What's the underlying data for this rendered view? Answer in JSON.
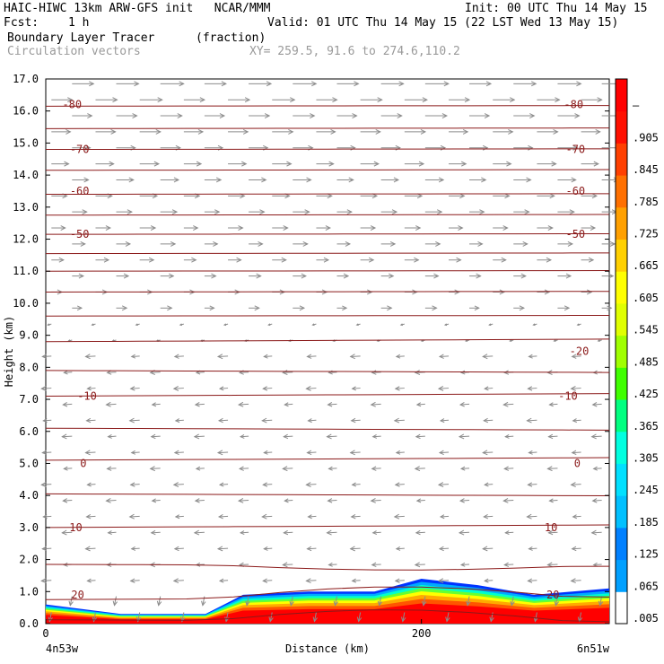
{
  "header": {
    "line1_left": "HAIC-HIWC 13km ARW-GFS init   NCAR/MMM",
    "line1_right": "Init: 00 UTC Thu 14 May 15",
    "fcst_label": "Fcst:",
    "fcst_value": "1 h",
    "valid": "Valid: 01 UTC Thu 14 May 15 (22 LST Wed 13 May 15)",
    "field": "Boundary Layer Tracer",
    "field_units": "(fraction)",
    "vectors": "Circulation vectors",
    "xy": "XY= 259.5, 91.6 to 274.6,110.2"
  },
  "colors": {
    "contour": "#8b1a1a",
    "vector": "#8c8c8c"
  },
  "chart_data": {
    "type": "heatmap",
    "xlabel": "Distance (km)",
    "ylabel": "Height (km)",
    "xlim": [
      0,
      300
    ],
    "ylim": [
      0,
      17
    ],
    "x_ticks": [
      {
        "v": 0,
        "label": "0"
      },
      {
        "v": 200,
        "label": "200"
      }
    ],
    "x_end_labels": [
      "4n53w",
      "6n51w"
    ],
    "y_ticks": [
      "0.0",
      "1.0",
      "2.0",
      "3.0",
      "4.0",
      "5.0",
      "6.0",
      "7.0",
      "8.0",
      "9.0",
      "10.0",
      "11.0",
      "12.0",
      "13.0",
      "14.0",
      "15.0",
      "16.0",
      "17.0"
    ],
    "colorbar": {
      "labels": [
        ".005",
        ".065",
        ".125",
        ".185",
        ".245",
        ".305",
        ".365",
        ".425",
        ".485",
        ".545",
        ".605",
        ".665",
        ".725",
        ".785",
        ".845",
        ".905",
        "–"
      ],
      "colors": [
        "#ffffff",
        "#00a0ff",
        "#0080ff",
        "#00c0ff",
        "#00e0ff",
        "#00ffe0",
        "#00ff80",
        "#40ff00",
        "#a0ff00",
        "#e0ff00",
        "#ffff00",
        "#ffd000",
        "#ffa000",
        "#ff7000",
        "#ff4000",
        "#ff1000",
        "#ff0000"
      ]
    },
    "temperature_contour_labels": [
      "-80",
      "-70",
      "-60",
      "-50",
      "-20",
      "-10",
      "0",
      "10",
      "20"
    ],
    "tracer_top_km": [
      {
        "x": 0,
        "y": 0.6
      },
      {
        "x": 40,
        "y": 0.3
      },
      {
        "x": 85,
        "y": 0.3
      },
      {
        "x": 105,
        "y": 0.9
      },
      {
        "x": 140,
        "y": 1.0
      },
      {
        "x": 175,
        "y": 1.0
      },
      {
        "x": 200,
        "y": 1.4
      },
      {
        "x": 230,
        "y": 1.2
      },
      {
        "x": 260,
        "y": 0.9
      },
      {
        "x": 300,
        "y": 1.1
      }
    ]
  }
}
